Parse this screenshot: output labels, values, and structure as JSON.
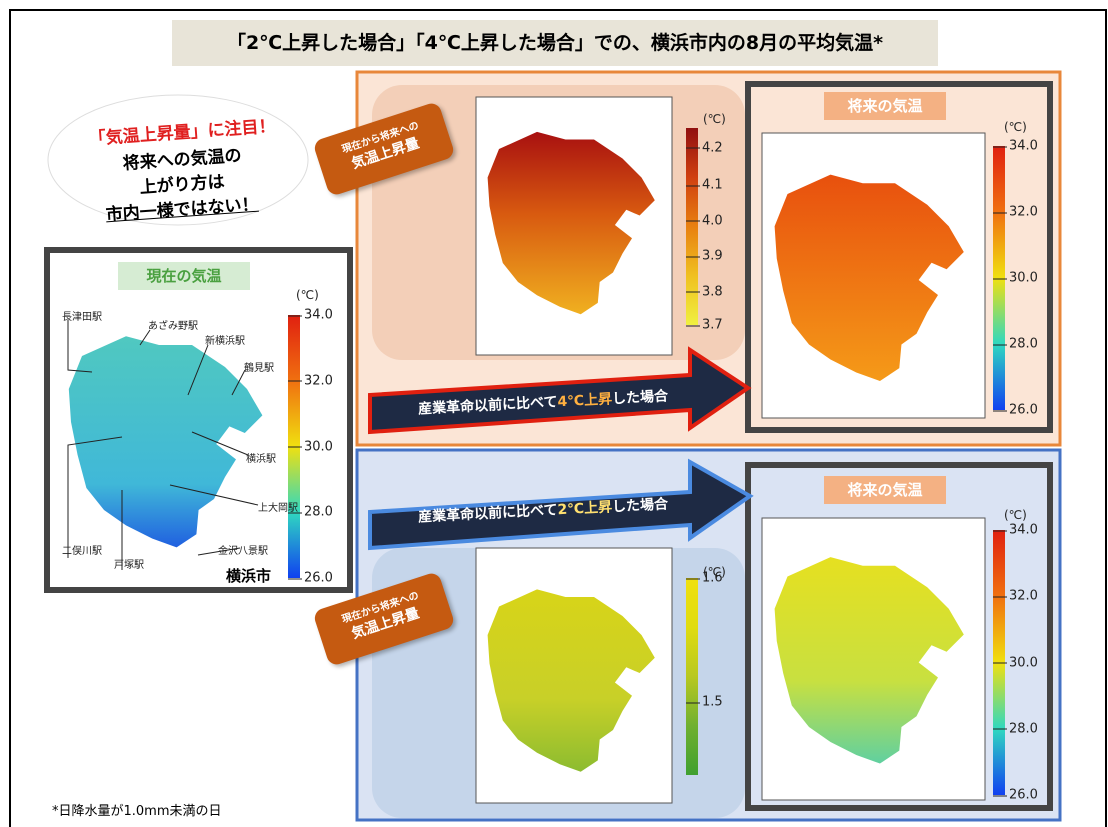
{
  "title": "「2℃上昇した場合」「4℃上昇した場合」での、横浜市内の8月の平均気温*",
  "callout": {
    "headline": "「気温上昇量」に注目！",
    "lines": [
      "将来への気温の",
      "上がり方は",
      "市内一様ではない！"
    ]
  },
  "current": {
    "label": "現在の気温",
    "unit": "(℃)",
    "ticks": [
      "34.0",
      "32.0",
      "30.0",
      "28.0",
      "26.0"
    ],
    "stations": [
      "長津田駅",
      "あざみ野駅",
      "新横浜駅",
      "鶴見駅",
      "横浜駅",
      "上大岡駅",
      "金沢八景駅",
      "戸塚駅",
      "二俣川駅"
    ],
    "city": "横浜市"
  },
  "scenario_4c": {
    "tag": [
      "現在から将来への",
      "気温上昇量"
    ],
    "increase_unit": "(℃)",
    "increase_ticks": [
      "4.2",
      "4.1",
      "4.0",
      "3.9",
      "3.8",
      "3.7"
    ],
    "arrow": [
      "産業革命以前に比べて",
      "4℃上昇",
      "した場合"
    ],
    "future_label": "将来の気温",
    "future_unit": "(℃)",
    "future_ticks": [
      "34.0",
      "32.0",
      "30.0",
      "28.0",
      "26.0"
    ]
  },
  "scenario_2c": {
    "tag": [
      "現在から将来への",
      "気温上昇量"
    ],
    "increase_unit": "(℃)",
    "increase_ticks": [
      "1.6",
      "1.5"
    ],
    "arrow": [
      "産業革命以前に比べて",
      "2℃上昇",
      "した場合"
    ],
    "future_label": "将来の気温",
    "future_unit": "(℃)",
    "future_ticks": [
      "34.0",
      "32.0",
      "30.0",
      "28.0",
      "26.0"
    ]
  },
  "footnote": "*日降水量が1.0mm未満の日"
}
